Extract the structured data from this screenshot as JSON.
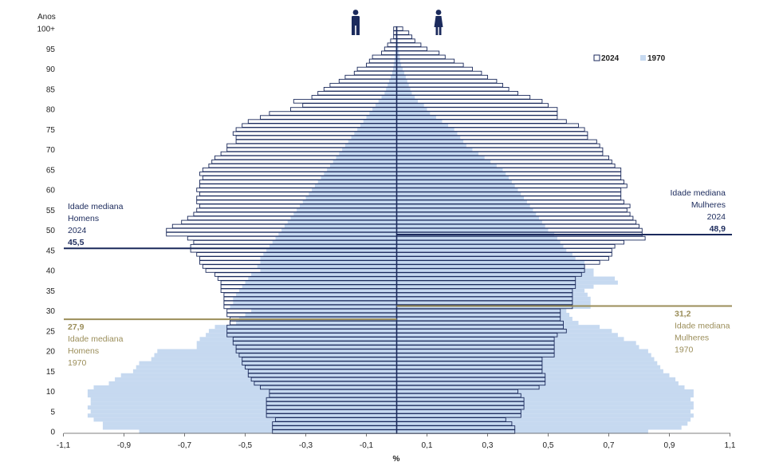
{
  "chart_data": {
    "type": "bar",
    "orientation": "horizontal",
    "ylabel": "Anos",
    "xlabel": "%",
    "xlim": [
      -1.1,
      1.1
    ],
    "x_ticks": [
      "-1,1",
      "-0,9",
      "-0,7",
      "-0,5",
      "-0,3",
      "-0,1",
      "0,1",
      "0,3",
      "0,5",
      "0,7",
      "0,9",
      "1,1"
    ],
    "y_ticks": [
      "0",
      "5",
      "10",
      "15",
      "20",
      "25",
      "30",
      "35",
      "40",
      "45",
      "50",
      "55",
      "60",
      "65",
      "70",
      "75",
      "80",
      "85",
      "90",
      "95",
      "100+"
    ],
    "ages": [
      0,
      1,
      2,
      3,
      4,
      5,
      6,
      7,
      8,
      9,
      10,
      11,
      12,
      13,
      14,
      15,
      16,
      17,
      18,
      19,
      20,
      21,
      22,
      23,
      24,
      25,
      26,
      27,
      28,
      29,
      30,
      31,
      32,
      33,
      34,
      35,
      36,
      37,
      38,
      39,
      40,
      41,
      42,
      43,
      44,
      45,
      46,
      47,
      48,
      49,
      50,
      51,
      52,
      53,
      54,
      55,
      56,
      57,
      58,
      59,
      60,
      61,
      62,
      63,
      64,
      65,
      66,
      67,
      68,
      69,
      70,
      71,
      72,
      73,
      74,
      75,
      76,
      77,
      78,
      79,
      80,
      81,
      82,
      83,
      84,
      85,
      86,
      87,
      88,
      89,
      90,
      91,
      92,
      93,
      94,
      95,
      96,
      97,
      98,
      99,
      100
    ],
    "legend": [
      "2024",
      "1970"
    ],
    "series": [
      {
        "name": "2024",
        "style": "outline",
        "men": [
          0.41,
          0.41,
          0.41,
          0.4,
          0.43,
          0.43,
          0.43,
          0.43,
          0.43,
          0.42,
          0.42,
          0.45,
          0.47,
          0.48,
          0.49,
          0.49,
          0.5,
          0.51,
          0.51,
          0.52,
          0.53,
          0.53,
          0.54,
          0.54,
          0.56,
          0.56,
          0.56,
          0.55,
          0.55,
          0.56,
          0.56,
          0.57,
          0.57,
          0.57,
          0.57,
          0.58,
          0.58,
          0.58,
          0.59,
          0.6,
          0.63,
          0.64,
          0.65,
          0.65,
          0.66,
          0.68,
          0.68,
          0.67,
          0.69,
          0.76,
          0.76,
          0.74,
          0.71,
          0.69,
          0.67,
          0.66,
          0.65,
          0.66,
          0.66,
          0.65,
          0.66,
          0.65,
          0.65,
          0.64,
          0.65,
          0.64,
          0.62,
          0.61,
          0.6,
          0.58,
          0.56,
          0.56,
          0.53,
          0.53,
          0.54,
          0.53,
          0.51,
          0.49,
          0.45,
          0.42,
          0.35,
          0.31,
          0.34,
          0.28,
          0.26,
          0.24,
          0.22,
          0.19,
          0.17,
          0.14,
          0.13,
          0.1,
          0.09,
          0.08,
          0.05,
          0.04,
          0.03,
          0.02,
          0.01,
          0.01,
          0.01
        ],
        "women": [
          0.39,
          0.39,
          0.38,
          0.36,
          0.41,
          0.41,
          0.42,
          0.42,
          0.42,
          0.41,
          0.4,
          0.47,
          0.49,
          0.49,
          0.49,
          0.48,
          0.48,
          0.48,
          0.48,
          0.52,
          0.52,
          0.52,
          0.52,
          0.52,
          0.53,
          0.56,
          0.55,
          0.55,
          0.54,
          0.54,
          0.54,
          0.58,
          0.58,
          0.58,
          0.58,
          0.58,
          0.59,
          0.59,
          0.59,
          0.61,
          0.62,
          0.62,
          0.67,
          0.7,
          0.71,
          0.71,
          0.72,
          0.75,
          0.82,
          0.81,
          0.81,
          0.8,
          0.79,
          0.78,
          0.77,
          0.76,
          0.77,
          0.75,
          0.74,
          0.74,
          0.74,
          0.76,
          0.75,
          0.74,
          0.74,
          0.74,
          0.72,
          0.71,
          0.7,
          0.68,
          0.68,
          0.67,
          0.66,
          0.63,
          0.63,
          0.62,
          0.6,
          0.56,
          0.53,
          0.53,
          0.53,
          0.5,
          0.48,
          0.44,
          0.4,
          0.37,
          0.35,
          0.33,
          0.3,
          0.28,
          0.25,
          0.22,
          0.19,
          0.16,
          0.14,
          0.1,
          0.08,
          0.06,
          0.05,
          0.04,
          0.02
        ]
      },
      {
        "name": "1970",
        "style": "filled",
        "men": [
          0.85,
          0.97,
          0.97,
          1.0,
          1.02,
          1.01,
          1.02,
          1.01,
          1.01,
          1.02,
          1.02,
          1.0,
          0.95,
          0.93,
          0.91,
          0.87,
          0.86,
          0.85,
          0.81,
          0.8,
          0.79,
          0.66,
          0.66,
          0.65,
          0.63,
          0.62,
          0.6,
          0.53,
          0.52,
          0.5,
          0.48,
          0.55,
          0.54,
          0.54,
          0.53,
          0.52,
          0.51,
          0.5,
          0.49,
          0.48,
          0.45,
          0.46,
          0.45,
          0.45,
          0.44,
          0.43,
          0.42,
          0.41,
          0.4,
          0.39,
          0.38,
          0.37,
          0.36,
          0.35,
          0.34,
          0.33,
          0.32,
          0.31,
          0.3,
          0.29,
          0.28,
          0.27,
          0.26,
          0.25,
          0.24,
          0.23,
          0.22,
          0.21,
          0.2,
          0.19,
          0.18,
          0.17,
          0.16,
          0.15,
          0.14,
          0.13,
          0.12,
          0.11,
          0.1,
          0.09,
          0.08,
          0.07,
          0.06,
          0.05,
          0.04,
          0.035,
          0.03,
          0.025,
          0.02,
          0.015,
          0.012,
          0.01,
          0.008,
          0.006,
          0.005,
          0.004,
          0.003,
          0.002,
          0.002,
          0.001,
          0.001
        ],
        "women": [
          0.83,
          0.94,
          0.96,
          0.97,
          0.98,
          0.97,
          0.98,
          0.98,
          0.97,
          0.98,
          0.98,
          0.95,
          0.93,
          0.92,
          0.9,
          0.88,
          0.87,
          0.86,
          0.85,
          0.84,
          0.83,
          0.8,
          0.79,
          0.75,
          0.73,
          0.71,
          0.67,
          0.6,
          0.58,
          0.57,
          0.56,
          0.64,
          0.64,
          0.64,
          0.63,
          0.62,
          0.65,
          0.73,
          0.72,
          0.65,
          0.65,
          0.62,
          0.62,
          0.59,
          0.58,
          0.56,
          0.55,
          0.54,
          0.53,
          0.52,
          0.5,
          0.49,
          0.48,
          0.47,
          0.46,
          0.45,
          0.44,
          0.43,
          0.42,
          0.41,
          0.4,
          0.39,
          0.38,
          0.37,
          0.36,
          0.35,
          0.33,
          0.31,
          0.29,
          0.27,
          0.25,
          0.23,
          0.22,
          0.21,
          0.2,
          0.19,
          0.17,
          0.15,
          0.13,
          0.11,
          0.1,
          0.09,
          0.07,
          0.06,
          0.05,
          0.045,
          0.04,
          0.035,
          0.03,
          0.025,
          0.02,
          0.015,
          0.012,
          0.01,
          0.008,
          0.006,
          0.005,
          0.004,
          0.003,
          0.002,
          0.002
        ]
      }
    ],
    "median_lines": [
      {
        "sex": "men",
        "year": "2024",
        "age": 45.5,
        "label_lines": [
          "Idade mediana",
          "Homens",
          "2024"
        ],
        "value_label": "45,5",
        "color": "#1b2a5c"
      },
      {
        "sex": "women",
        "year": "2024",
        "age": 48.9,
        "label_lines": [
          "Idade mediana",
          "Mulheres",
          "2024"
        ],
        "value_label": "48,9",
        "color": "#1b2a5c"
      },
      {
        "sex": "men",
        "year": "1970",
        "age": 27.9,
        "label_lines": [
          "Idade mediana",
          "Homens",
          "1970"
        ],
        "value_label": "27,9",
        "color": "#9b8e5a"
      },
      {
        "sex": "women",
        "year": "1970",
        "age": 31.2,
        "label_lines": [
          "Idade mediana",
          "Mulheres",
          "1970"
        ],
        "value_label": "31,2",
        "color": "#9b8e5a"
      }
    ],
    "colors": {
      "bar_1970": "#c6d9f0",
      "bar_2024_stroke": "#1b2a5c",
      "median_2024": "#1b2a5c",
      "median_1970": "#9b8e5a",
      "icon": "#1b2a5c"
    },
    "icons": [
      "man-icon",
      "woman-icon"
    ],
    "grid": false,
    "legend_position": "top-right"
  }
}
